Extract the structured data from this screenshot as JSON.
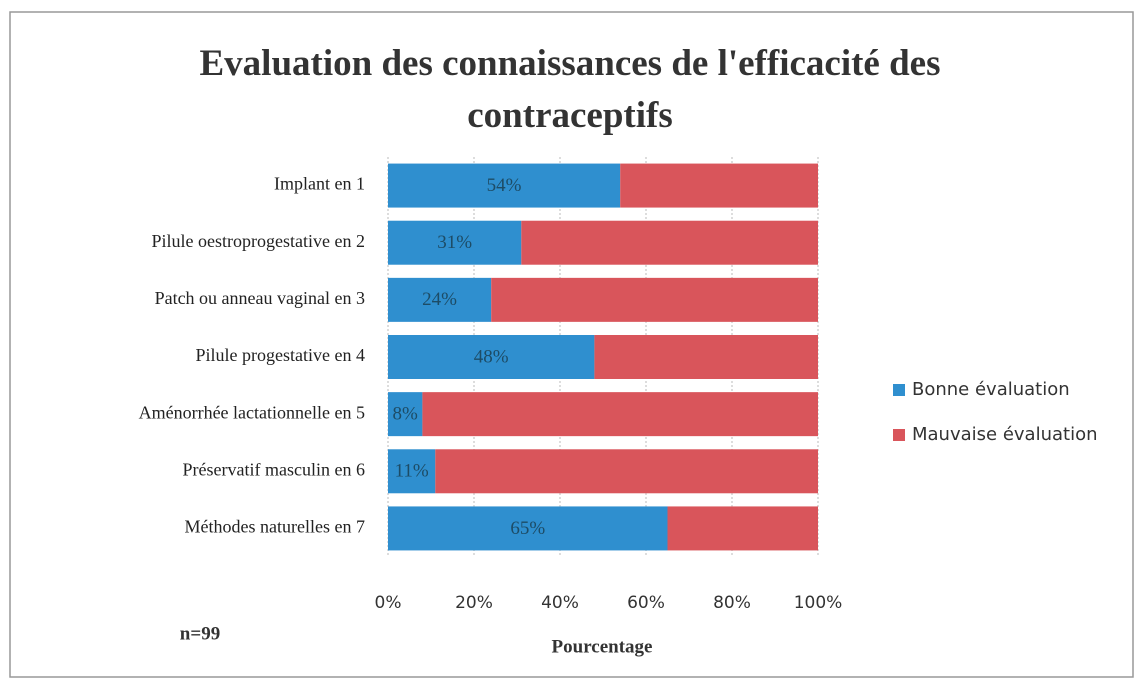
{
  "chart_data": {
    "type": "stacked_bar_horizontal",
    "title": "Evaluation des connaissances de l'efficacité des contraceptifs",
    "categories": [
      "Implant en 1",
      "Pilule oestroprogestative en 2",
      "Patch ou anneau vaginal en 3",
      "Pilule progestative en 4",
      "Aménorrhée lactationnelle en 5",
      "Préservatif masculin en 6",
      "Méthodes naturelles en 7"
    ],
    "series": [
      {
        "name": "Bonne évaluation",
        "color": "#2f8fcf",
        "values": [
          54,
          31,
          24,
          48,
          8,
          11,
          65
        ],
        "value_labels": [
          "54%",
          "31%",
          "24%",
          "48%",
          "8%",
          "11%",
          "65%"
        ]
      },
      {
        "name": "Mauvaise évaluation",
        "color": "#d9555b",
        "values": [
          46,
          69,
          76,
          52,
          92,
          89,
          35
        ]
      }
    ],
    "xlabel": "Pourcentage",
    "annotation": "n=99",
    "xlim": [
      0,
      100
    ],
    "xticks": [
      {
        "value": 0,
        "label": "0%"
      },
      {
        "value": 20,
        "label": "20%"
      },
      {
        "value": 40,
        "label": "40%"
      },
      {
        "value": 60,
        "label": "60%"
      },
      {
        "value": 80,
        "label": "80%"
      },
      {
        "value": 100,
        "label": "100%"
      }
    ],
    "grid": true,
    "legend": "right"
  }
}
